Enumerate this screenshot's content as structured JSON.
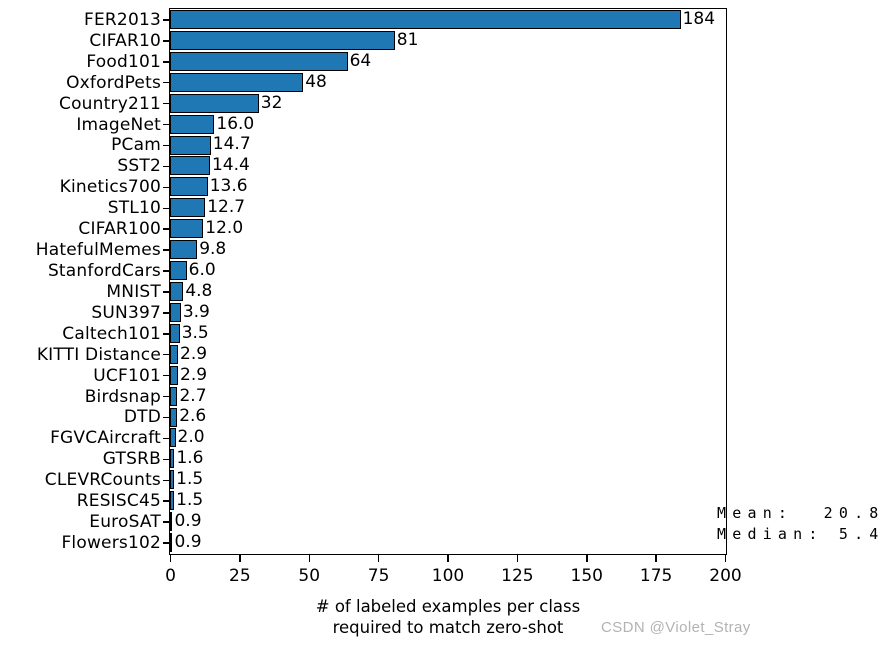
{
  "chart_data": {
    "type": "bar",
    "orientation": "horizontal",
    "categories": [
      "FER2013",
      "CIFAR10",
      "Food101",
      "OxfordPets",
      "Country211",
      "ImageNet",
      "PCam",
      "SST2",
      "Kinetics700",
      "STL10",
      "CIFAR100",
      "HatefulMemes",
      "StanfordCars",
      "MNIST",
      "SUN397",
      "Caltech101",
      "KITTI Distance",
      "UCF101",
      "Birdsnap",
      "DTD",
      "FGVCAircraft",
      "GTSRB",
      "CLEVRCounts",
      "RESISC45",
      "EuroSAT",
      "Flowers102"
    ],
    "values": [
      184,
      81,
      64,
      48,
      32,
      16.0,
      14.7,
      14.4,
      13.6,
      12.7,
      12.0,
      9.8,
      6.0,
      4.8,
      3.9,
      3.5,
      2.9,
      2.9,
      2.7,
      2.6,
      2.0,
      1.6,
      1.5,
      1.5,
      0.9,
      0.9
    ],
    "value_labels": [
      "184",
      "81",
      "64",
      "48",
      "32",
      "16.0",
      "14.7",
      "14.4",
      "13.6",
      "12.7",
      "12.0",
      "9.8",
      "6.0",
      "4.8",
      "3.9",
      "3.5",
      "2.9",
      "2.9",
      "2.7",
      "2.6",
      "2.0",
      "1.6",
      "1.5",
      "1.5",
      "0.9",
      "0.9"
    ],
    "xlabel_line1": "# of labeled examples per class",
    "xlabel_line2": "required to match zero-shot",
    "x_ticks": [
      0,
      25,
      50,
      75,
      100,
      125,
      150,
      175,
      200
    ],
    "xlim": [
      0,
      200
    ],
    "grid": false,
    "legend": null,
    "bar_color": "#1f77b4",
    "bar_edge_color": "#000000",
    "annotations": {
      "mean": "Mean:  20.8",
      "median": "Median: 5.4"
    }
  },
  "watermark": "CSDN @Violet_Stray"
}
